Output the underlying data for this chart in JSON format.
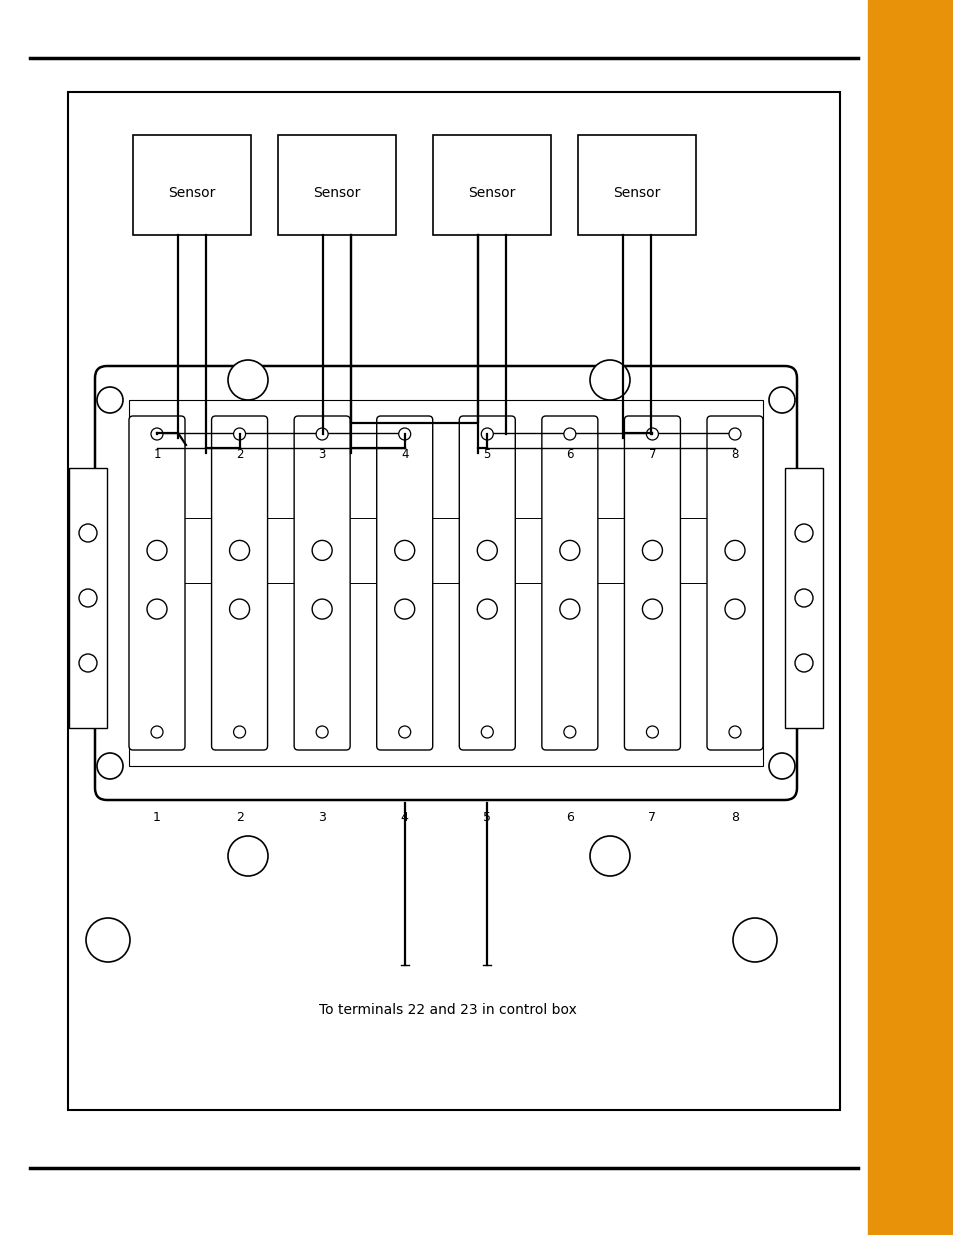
{
  "bg_color": "#ffffff",
  "line_color": "#000000",
  "orange_color": "#E8920A",
  "caption": "To terminals 22 and 23 in control box",
  "sensor_labels": [
    "Sensor",
    "Sensor",
    "Sensor",
    "Sensor"
  ],
  "sensor_font_size": 10,
  "num_labels": [
    "1",
    "2",
    "3",
    "4",
    "5",
    "6",
    "7",
    "8"
  ]
}
